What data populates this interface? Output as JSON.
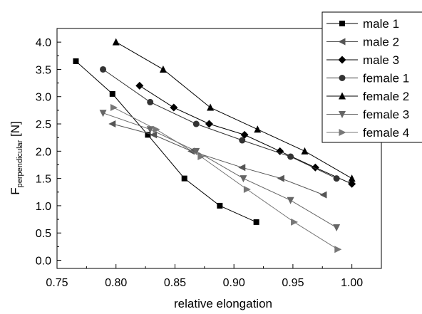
{
  "chart_data": {
    "type": "line",
    "xlabel": "relative elongation",
    "ylabel_main": "F",
    "ylabel_sub": "perpendicular",
    "ylabel_unit": " [N]",
    "xlim": [
      0.75,
      1.025
    ],
    "ylim": [
      -0.15,
      4.25
    ],
    "xticks": [
      "0.75",
      "0.80",
      "0.85",
      "0.90",
      "0.95",
      "1.00"
    ],
    "xtick_values": [
      0.75,
      0.8,
      0.85,
      0.9,
      0.95,
      1.0
    ],
    "yticks": [
      "0.0",
      "0.5",
      "1.0",
      "1.5",
      "2.0",
      "2.5",
      "3.0",
      "3.5",
      "4.0"
    ],
    "ytick_values": [
      0.0,
      0.5,
      1.0,
      1.5,
      2.0,
      2.5,
      3.0,
      3.5,
      4.0
    ],
    "grid": false,
    "legend_position": "top-right",
    "series": [
      {
        "name": "male 1",
        "color": "#000000",
        "marker": "square",
        "x": [
          0.766,
          0.797,
          0.827,
          0.858,
          0.888,
          0.919
        ],
        "y": [
          3.65,
          3.05,
          2.3,
          1.5,
          1.0,
          0.7
        ]
      },
      {
        "name": "male 2",
        "color": "#555555",
        "marker": "triangle-left",
        "x": [
          0.797,
          0.832,
          0.864,
          0.907,
          0.94,
          0.976
        ],
        "y": [
          2.5,
          2.3,
          2.0,
          1.7,
          1.5,
          1.2
        ]
      },
      {
        "name": "male 3",
        "color": "#000000",
        "marker": "diamond",
        "x": [
          0.82,
          0.849,
          0.879,
          0.909,
          0.939,
          0.969,
          1.0
        ],
        "y": [
          3.2,
          2.8,
          2.5,
          2.3,
          2.0,
          1.7,
          1.4
        ]
      },
      {
        "name": "female 1",
        "color": "#333333",
        "marker": "circle",
        "x": [
          0.789,
          0.829,
          0.868,
          0.907,
          0.948,
          0.987
        ],
        "y": [
          3.5,
          2.9,
          2.5,
          2.2,
          1.9,
          1.5
        ]
      },
      {
        "name": "female 2",
        "color": "#000000",
        "marker": "triangle-up",
        "x": [
          0.8,
          0.84,
          0.88,
          0.92,
          0.96,
          1.0
        ],
        "y": [
          4.0,
          3.5,
          2.8,
          2.4,
          2.0,
          1.5
        ]
      },
      {
        "name": "female 3",
        "color": "#666666",
        "marker": "triangle-down",
        "x": [
          0.789,
          0.829,
          0.868,
          0.908,
          0.948,
          0.987
        ],
        "y": [
          2.7,
          2.4,
          2.0,
          1.5,
          1.1,
          0.6
        ]
      },
      {
        "name": "female 4",
        "color": "#777777",
        "marker": "triangle-right",
        "x": [
          0.798,
          0.834,
          0.872,
          0.911,
          0.951,
          0.988
        ],
        "y": [
          2.8,
          2.4,
          1.9,
          1.3,
          0.7,
          0.2
        ]
      }
    ]
  }
}
